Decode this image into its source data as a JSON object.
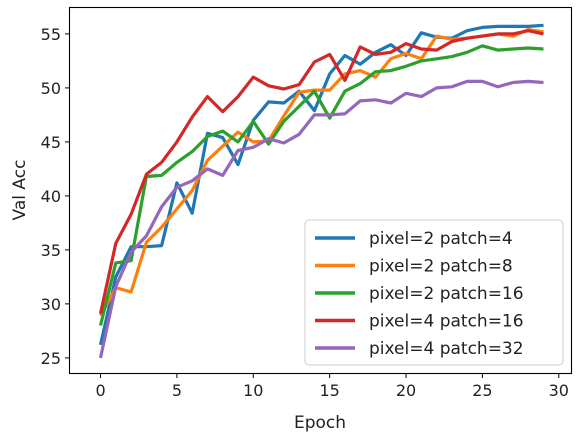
{
  "chart_data": {
    "type": "line",
    "title": "",
    "xlabel": "Epoch",
    "ylabel": "Val Acc",
    "xlim": [
      -2,
      30.8
    ],
    "ylim": [
      23.6,
      57.4
    ],
    "xticks": [
      0,
      5,
      10,
      15,
      20,
      25,
      30
    ],
    "yticks": [
      25,
      30,
      35,
      40,
      45,
      50,
      55
    ],
    "grid": false,
    "legend_position": "lower-right",
    "x": [
      0,
      1,
      2,
      3,
      4,
      5,
      6,
      7,
      8,
      9,
      10,
      11,
      12,
      13,
      14,
      15,
      16,
      17,
      18,
      19,
      20,
      21,
      22,
      23,
      24,
      25,
      26,
      27,
      28,
      29
    ],
    "series": [
      {
        "name": "pixel=2 patch=4",
        "color": "#1f77b4",
        "values": [
          26.2,
          32.5,
          35.3,
          35.3,
          35.4,
          41.2,
          38.4,
          45.8,
          45.4,
          42.9,
          47.0,
          48.7,
          48.6,
          49.7,
          47.9,
          51.3,
          53.0,
          52.2,
          53.3,
          54.0,
          53.0,
          55.1,
          54.7,
          54.6,
          55.3,
          55.6,
          55.7,
          55.7,
          55.7,
          55.8
        ]
      },
      {
        "name": "pixel=2 patch=8",
        "color": "#ff7f0e",
        "values": [
          28.9,
          31.5,
          31.1,
          35.7,
          37.1,
          38.8,
          40.5,
          43.3,
          44.6,
          45.9,
          45.0,
          45.1,
          47.4,
          49.6,
          49.8,
          49.8,
          51.3,
          51.6,
          51.0,
          52.7,
          53.2,
          52.7,
          54.8,
          54.5,
          54.6,
          54.8,
          55.0,
          54.8,
          55.4,
          55.2
        ]
      },
      {
        "name": "pixel=2 patch=16",
        "color": "#2ca02c",
        "values": [
          28.0,
          33.8,
          34.0,
          41.8,
          41.9,
          43.1,
          44.1,
          45.5,
          46.0,
          45.0,
          46.9,
          44.8,
          46.9,
          48.3,
          49.7,
          47.2,
          49.7,
          50.4,
          51.5,
          51.6,
          52.0,
          52.5,
          52.7,
          52.9,
          53.3,
          53.9,
          53.5,
          53.6,
          53.7,
          53.6
        ]
      },
      {
        "name": "pixel=4 patch=16",
        "color": "#d62728",
        "values": [
          29.1,
          35.6,
          38.3,
          42.0,
          43.1,
          45.0,
          47.3,
          49.2,
          47.8,
          49.2,
          51.0,
          50.2,
          49.9,
          50.3,
          52.4,
          53.1,
          50.7,
          53.8,
          53.1,
          53.3,
          54.1,
          53.6,
          53.5,
          54.3,
          54.6,
          54.8,
          55.0,
          55.0,
          55.3,
          55.0
        ]
      },
      {
        "name": "pixel=4 patch=32",
        "color": "#9467bd",
        "values": [
          25.0,
          31.6,
          34.8,
          36.3,
          39.0,
          40.8,
          41.4,
          42.5,
          41.9,
          44.2,
          44.5,
          45.3,
          44.9,
          45.7,
          47.5,
          47.5,
          47.6,
          48.8,
          48.9,
          48.6,
          49.5,
          49.2,
          50.0,
          50.1,
          50.6,
          50.6,
          50.1,
          50.5,
          50.6,
          50.5
        ]
      }
    ]
  }
}
